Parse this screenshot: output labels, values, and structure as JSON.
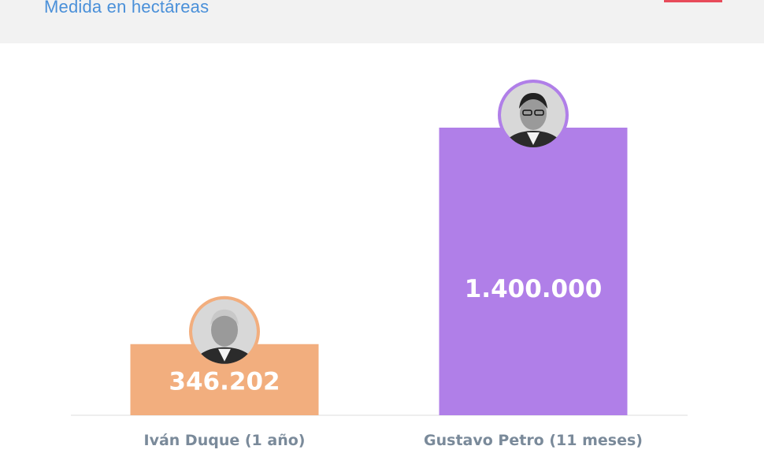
{
  "header": {
    "subtitle": "Medida en hectáreas"
  },
  "colors": {
    "header_bg": "#f2f2f2",
    "subtitle": "#4a90d9",
    "logo_accent": "#e84b5a",
    "duque": "#f2ae7e",
    "petro": "#b07fe8",
    "axis": "#dddddd",
    "label": "#7a8a9a"
  },
  "chart_data": {
    "type": "bar",
    "categories": [
      "Iván Duque (1 año)",
      "Gustavo Petro (11 meses)"
    ],
    "values": [
      346202,
      1400000
    ],
    "value_labels": [
      "346.202",
      "1.400.000"
    ],
    "bar_colors": [
      "#f2ae7e",
      "#b07fe8"
    ],
    "avatars": [
      "avatar-duque",
      "avatar-petro"
    ],
    "ylim": [
      0,
      1400000
    ],
    "title": "",
    "xlabel": "",
    "ylabel": "",
    "grid": false,
    "legend": "none"
  }
}
